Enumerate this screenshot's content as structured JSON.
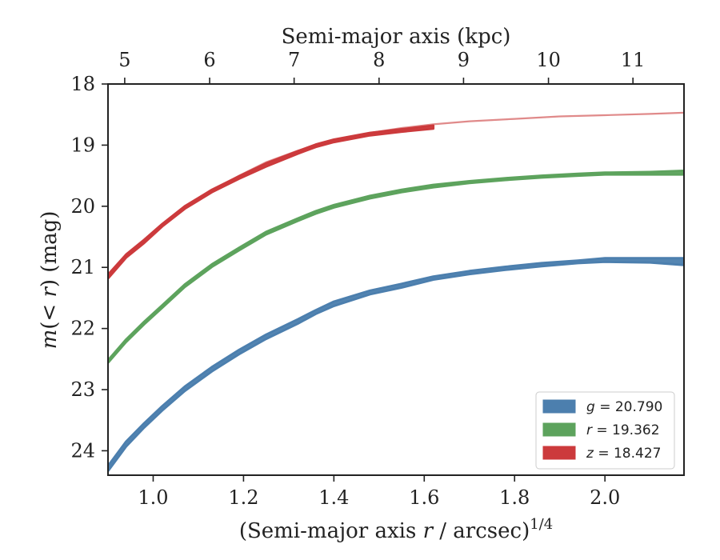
{
  "chart_data": {
    "type": "line",
    "xlabel_main": "(Semi-major axis ",
    "xlabel_var": "r",
    "xlabel_rest": " / arcsec)",
    "xlabel_exp": "1/4",
    "ylabel_m": "m",
    "ylabel_mid": "(< ",
    "ylabel_r": "r",
    "ylabel_close": ")",
    "ylabel_unit": " (mag)",
    "top_xlabel": "Semi-major axis (kpc)",
    "xlim": [
      0.9,
      2.175
    ],
    "ylim": [
      24.4,
      18.0
    ],
    "y_inverted": true,
    "x_ticks": [
      1.0,
      1.2,
      1.4,
      1.6,
      1.8,
      2.0
    ],
    "x_tick_labels": [
      "1.0",
      "1.2",
      "1.4",
      "1.6",
      "1.8",
      "2.0"
    ],
    "y_ticks": [
      18,
      19,
      20,
      21,
      22,
      23,
      24
    ],
    "y_tick_labels": [
      "18",
      "19",
      "20",
      "21",
      "22",
      "23",
      "24"
    ],
    "top_ticks_kpc": [
      5,
      6,
      7,
      8,
      9,
      10,
      11
    ],
    "top_tick_labels": [
      "5",
      "6",
      "7",
      "8",
      "9",
      "10",
      "11"
    ],
    "top_ticks_x_equiv": [
      0.937,
      1.125,
      1.312,
      1.5,
      1.687,
      1.875,
      2.062
    ],
    "grid": false,
    "legend_position": "lower-right",
    "series": [
      {
        "name": "g",
        "legend_var": "g",
        "legend_value": " = 20.790",
        "color": "#4c7fae",
        "band": true,
        "x": [
          0.9,
          0.94,
          0.98,
          1.02,
          1.07,
          1.13,
          1.19,
          1.25,
          1.32,
          1.36,
          1.4,
          1.48,
          1.55,
          1.62,
          1.7,
          1.78,
          1.86,
          1.94,
          2.0,
          2.1,
          2.175
        ],
        "y_upper": [
          24.25,
          23.85,
          23.55,
          23.27,
          22.95,
          22.63,
          22.35,
          22.1,
          21.85,
          21.7,
          21.56,
          21.38,
          21.27,
          21.15,
          21.06,
          20.99,
          20.93,
          20.89,
          20.85,
          20.85,
          20.85
        ],
        "y_lower": [
          24.33,
          23.93,
          23.62,
          23.34,
          23.02,
          22.7,
          22.42,
          22.17,
          21.92,
          21.76,
          21.63,
          21.44,
          21.33,
          21.2,
          21.11,
          21.04,
          20.98,
          20.93,
          20.91,
          20.92,
          20.96
        ]
      },
      {
        "name": "r",
        "legend_var": "r",
        "legend_value": " = 19.362",
        "color": "#5da35d",
        "band": true,
        "x": [
          0.9,
          0.94,
          0.98,
          1.02,
          1.07,
          1.13,
          1.19,
          1.25,
          1.32,
          1.36,
          1.4,
          1.48,
          1.55,
          1.62,
          1.7,
          1.78,
          1.86,
          1.94,
          2.0,
          2.1,
          2.175
        ],
        "y_upper": [
          22.52,
          22.18,
          21.89,
          21.62,
          21.28,
          20.95,
          20.68,
          20.42,
          20.2,
          20.08,
          19.98,
          19.83,
          19.73,
          19.65,
          19.59,
          19.54,
          19.5,
          19.47,
          19.45,
          19.44,
          19.42
        ],
        "y_lower": [
          22.56,
          22.22,
          21.93,
          21.66,
          21.32,
          20.99,
          20.72,
          20.46,
          20.24,
          20.12,
          20.02,
          19.87,
          19.77,
          19.69,
          19.62,
          19.57,
          19.53,
          19.5,
          19.48,
          19.48,
          19.48
        ]
      },
      {
        "name": "z",
        "legend_var": "z",
        "legend_value": " = 18.427",
        "color": "#cc3a3c",
        "band": true,
        "x": [
          0.9,
          0.94,
          0.98,
          1.02,
          1.07,
          1.13,
          1.19,
          1.25,
          1.32,
          1.36,
          1.4,
          1.48,
          1.55,
          1.62
        ],
        "y_upper": [
          21.12,
          20.79,
          20.55,
          20.29,
          20.0,
          19.73,
          19.51,
          19.3,
          19.1,
          18.99,
          18.91,
          18.8,
          18.74,
          18.68
        ],
        "y_lower": [
          21.18,
          20.84,
          20.6,
          20.33,
          20.04,
          19.77,
          19.55,
          19.35,
          19.14,
          19.03,
          18.95,
          18.84,
          18.78,
          18.73
        ]
      }
    ],
    "model_curve": {
      "name": "z model",
      "color": "#e08a8a",
      "x": [
        0.9,
        0.94,
        0.98,
        1.02,
        1.07,
        1.13,
        1.19,
        1.25,
        1.32,
        1.4,
        1.48,
        1.55,
        1.62,
        1.7,
        1.8,
        1.9,
        2.0,
        2.1,
        2.175
      ],
      "y": [
        21.15,
        20.81,
        20.57,
        20.3,
        20.01,
        19.74,
        19.5,
        19.28,
        19.09,
        18.91,
        18.8,
        18.72,
        18.66,
        18.61,
        18.57,
        18.53,
        18.51,
        18.49,
        18.47
      ]
    }
  }
}
